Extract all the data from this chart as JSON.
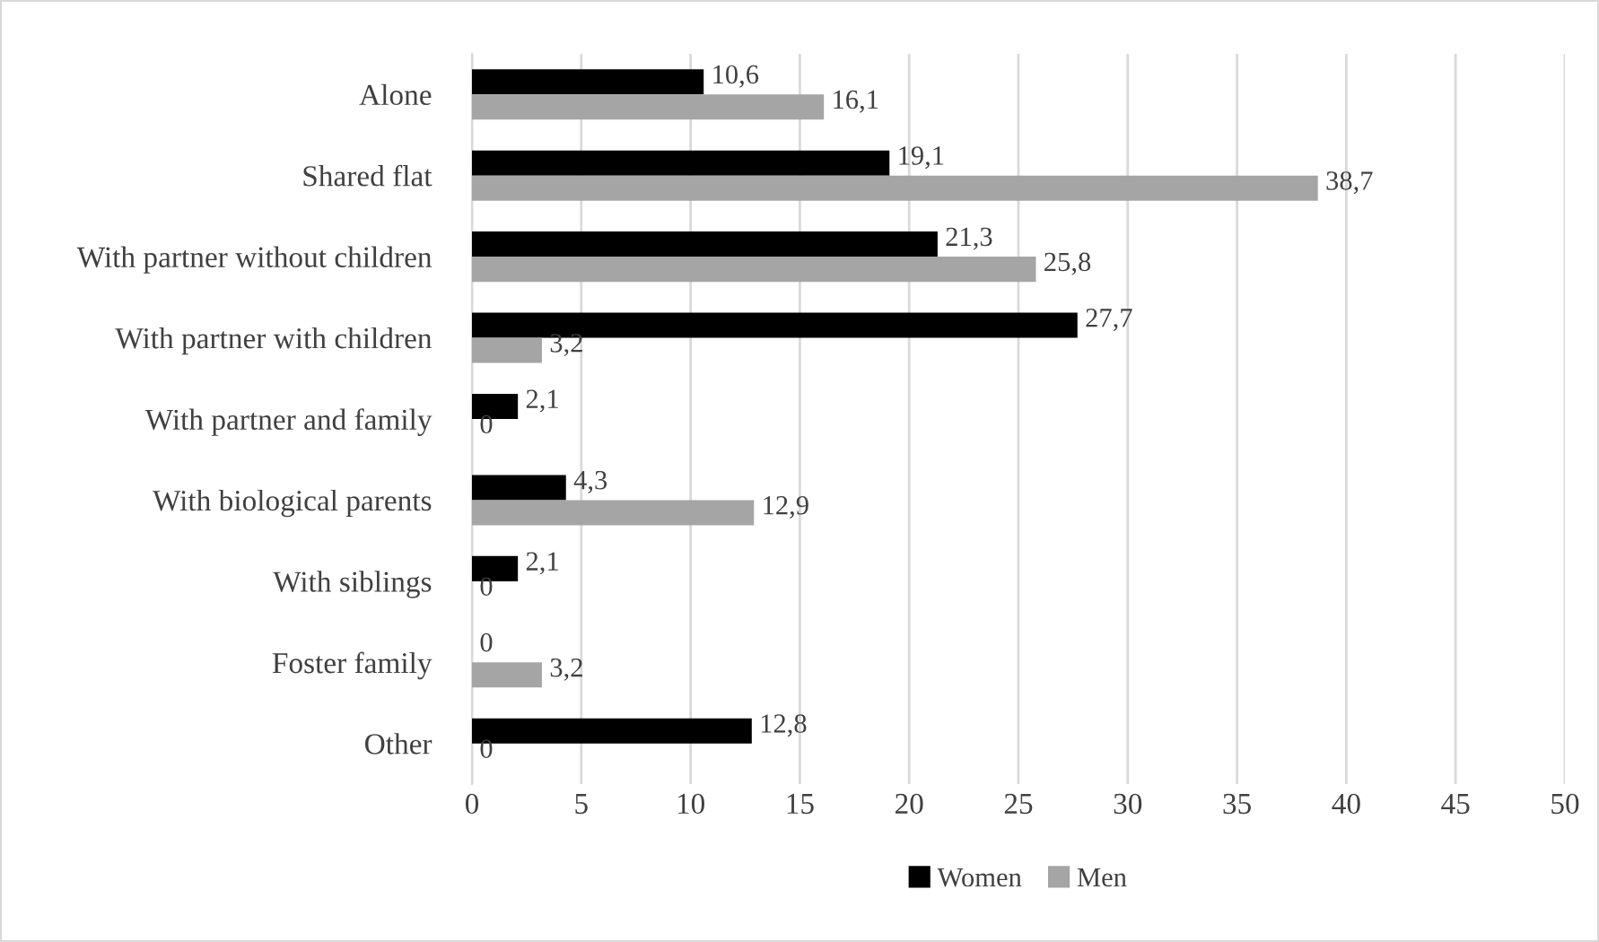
{
  "chart_data": {
    "type": "bar",
    "orientation": "horizontal",
    "categories": [
      "Alone",
      "Shared flat",
      "With partner without children",
      "With partner with children",
      "With partner and family",
      "With biological parents",
      "With siblings",
      "Foster family",
      "Other"
    ],
    "series": [
      {
        "name": "Women",
        "color": "#000000",
        "values": [
          10.6,
          19.1,
          21.3,
          27.7,
          2.1,
          4.3,
          2.1,
          0,
          12.8
        ],
        "value_labels": [
          "10,6",
          "19,1",
          "21,3",
          "27,7",
          "2,1",
          "4,3",
          "2,1",
          "0",
          "12,8"
        ]
      },
      {
        "name": "Men",
        "color": "#a5a5a5",
        "values": [
          16.1,
          38.7,
          25.8,
          3.2,
          0,
          12.9,
          0,
          3.2,
          0
        ],
        "value_labels": [
          "16,1",
          "38,7",
          "25,8",
          "3,2",
          "0",
          "12,9",
          "0",
          "3,2",
          "0"
        ]
      }
    ],
    "xlim": [
      0,
      50
    ],
    "xticks": [
      0,
      5,
      10,
      15,
      20,
      25,
      30,
      35,
      40,
      45,
      50
    ],
    "grid": "x",
    "legend": "bottom"
  }
}
